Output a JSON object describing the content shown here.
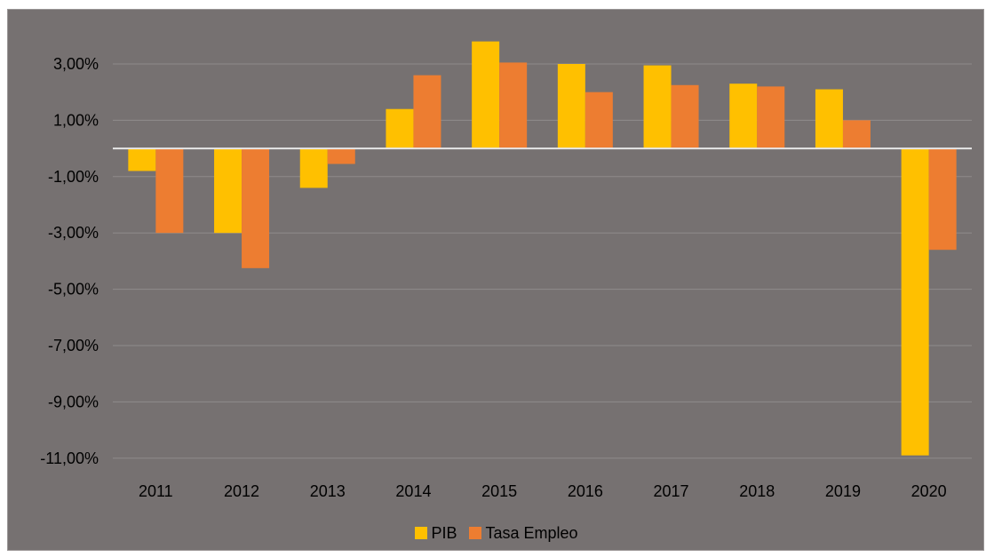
{
  "chart_data": {
    "type": "bar",
    "categories": [
      "2011",
      "2012",
      "2013",
      "2014",
      "2015",
      "2016",
      "2017",
      "2018",
      "2019",
      "2020"
    ],
    "series": [
      {
        "name": "PIB",
        "color": "#FFC000",
        "values": [
          -0.8,
          -3.0,
          -1.4,
          1.4,
          3.8,
          3.0,
          2.95,
          2.3,
          2.1,
          -10.9
        ]
      },
      {
        "name": "Tasa Empleo",
        "color": "#ED7D31",
        "values": [
          -3.0,
          -4.25,
          -0.55,
          2.6,
          3.05,
          2.0,
          2.25,
          2.2,
          1.0,
          -3.6
        ]
      }
    ],
    "y_ticks": [
      "3,00%",
      "1,00%",
      "-1,00%",
      "-3,00%",
      "-5,00%",
      "-7,00%",
      "-9,00%",
      "-11,00%"
    ],
    "y_tick_values": [
      3,
      1,
      -1,
      -3,
      -5,
      -7,
      -9,
      -11
    ],
    "ylim": [
      -11,
      4
    ],
    "title": "",
    "xlabel": "",
    "ylabel": "",
    "legend_position": "bottom",
    "grid": true,
    "background_color": "#767171",
    "gridline_color": "#8f8b8b",
    "zero_line_color": "#e6e6e6"
  }
}
